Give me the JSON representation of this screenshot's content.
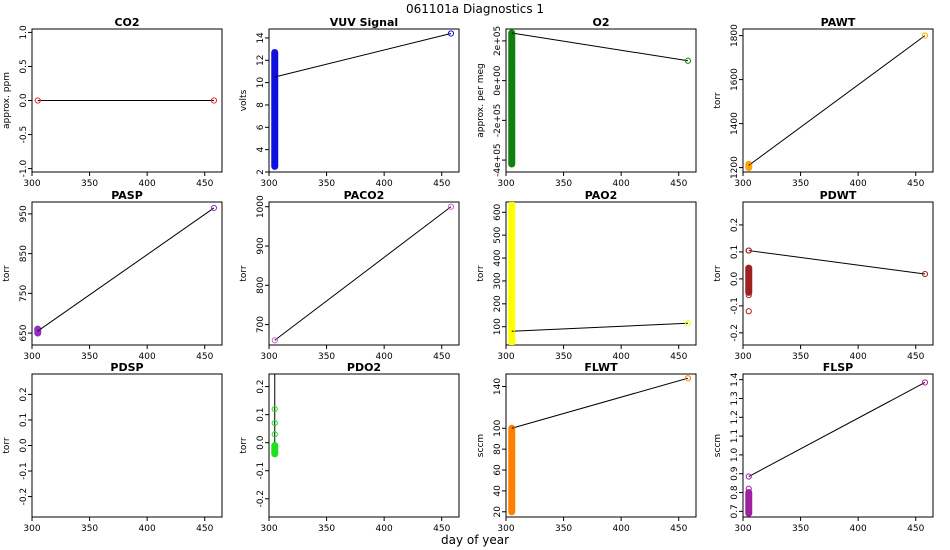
{
  "figure": {
    "title": "061101a    Diagnostics 1",
    "xlabel": "day of year"
  },
  "chart_data": [
    {
      "type": "scatter",
      "title": "CO2",
      "ylabel": "approx. ppm",
      "color": "#e03030",
      "xlim": [
        300,
        465
      ],
      "ylim": [
        -1.05,
        1.05
      ],
      "xticks": [
        300,
        350,
        400,
        450
      ],
      "yticks": [
        -1.0,
        -0.5,
        0.0,
        0.5,
        1.0
      ],
      "ytick_labels": [
        "-1.0",
        "-0.5",
        "0.0",
        "0.5",
        "1.0"
      ],
      "x": [
        305,
        458
      ],
      "y": [
        0.0,
        0.0
      ],
      "cluster": null
    },
    {
      "type": "scatter",
      "title": "VUV Signal",
      "ylabel": "volts",
      "color": "#1010e0",
      "xlim": [
        300,
        465
      ],
      "ylim": [
        2.0,
        14.8
      ],
      "xticks": [
        300,
        350,
        400,
        450
      ],
      "yticks": [
        2,
        4,
        6,
        8,
        10,
        12,
        14
      ],
      "ytick_labels": [
        "2",
        "4",
        "6",
        "8",
        "10",
        "12",
        "14"
      ],
      "x": [
        305,
        458
      ],
      "y": [
        10.5,
        14.4
      ],
      "cluster": {
        "x": 305,
        "ymin": 2.5,
        "ymax": 12.7
      }
    },
    {
      "type": "scatter",
      "title": "O2",
      "ylabel": "approx. per meg",
      "color": "#108010",
      "xlim": [
        300,
        465
      ],
      "ylim": [
        -460000,
        260000
      ],
      "xticks": [
        300,
        350,
        400,
        450
      ],
      "yticks": [
        -400000,
        -200000,
        0,
        200000
      ],
      "ytick_labels": [
        "-4e+05",
        "-2e+05",
        "0e+00",
        "2e+05"
      ],
      "x": [
        305,
        458
      ],
      "y": [
        240000,
        100000
      ],
      "cluster": {
        "x": 305,
        "ymin": -420000,
        "ymax": 240000,
        "points": [
          -420000,
          -200000,
          -110000,
          -40000,
          10000,
          40000,
          70000,
          120000,
          160000
        ]
      }
    },
    {
      "type": "scatter",
      "title": "PAWT",
      "ylabel": "torr",
      "color": "#ffa500",
      "xlim": [
        300,
        465
      ],
      "ylim": [
        1180,
        1830
      ],
      "xticks": [
        300,
        350,
        400,
        450
      ],
      "yticks": [
        1200,
        1400,
        1600,
        1800
      ],
      "ytick_labels": [
        "1200",
        "1400",
        "1600",
        "1800"
      ],
      "x": [
        305,
        458
      ],
      "y": [
        1210,
        1800
      ],
      "cluster": {
        "x": 305,
        "ymin": 1200,
        "ymax": 1215
      }
    },
    {
      "type": "scatter",
      "title": "PASP",
      "ylabel": "torr",
      "color": "#9030c0",
      "xlim": [
        300,
        465
      ],
      "ylim": [
        620,
        980
      ],
      "xticks": [
        300,
        350,
        400,
        450
      ],
      "yticks": [
        650,
        750,
        850,
        950
      ],
      "ytick_labels": [
        "650",
        "750",
        "850",
        "950"
      ],
      "x": [
        305,
        458
      ],
      "y": [
        655,
        965
      ],
      "cluster": {
        "x": 305,
        "ymin": 650,
        "ymax": 660
      }
    },
    {
      "type": "scatter",
      "title": "PACO2",
      "ylabel": "torr",
      "color": "#d060d0",
      "xlim": [
        300,
        465
      ],
      "ylim": [
        648,
        1012
      ],
      "xticks": [
        300,
        350,
        400,
        450
      ],
      "yticks": [
        700,
        800,
        900,
        1000
      ],
      "ytick_labels": [
        "700",
        "800",
        "900",
        "1000"
      ],
      "x": [
        305,
        458
      ],
      "y": [
        660,
        1000
      ],
      "cluster": null
    },
    {
      "type": "scatter",
      "title": "PAO2",
      "ylabel": "torr",
      "color": "#ffff00",
      "xlim": [
        300,
        465
      ],
      "ylim": [
        20,
        645
      ],
      "xticks": [
        300,
        350,
        400,
        450
      ],
      "yticks": [
        100,
        200,
        300,
        400,
        500,
        600
      ],
      "ytick_labels": [
        "100",
        "200",
        "300",
        "400",
        "500",
        "600"
      ],
      "x": [
        305,
        458
      ],
      "y": [
        80,
        115
      ],
      "cluster": {
        "x": 305,
        "ymin": 30,
        "ymax": 635
      }
    },
    {
      "type": "scatter",
      "title": "PDWT",
      "ylabel": "torr",
      "color": "#a02020",
      "xlim": [
        300,
        465
      ],
      "ylim": [
        -0.245,
        0.285
      ],
      "xticks": [
        300,
        350,
        400,
        450
      ],
      "yticks": [
        -0.2,
        -0.1,
        0.0,
        0.1,
        0.2
      ],
      "ytick_labels": [
        "-0.2",
        "-0.1",
        "0.0",
        "0.1",
        "0.2"
      ],
      "x": [
        305,
        458
      ],
      "y": [
        0.105,
        0.018
      ],
      "cluster": {
        "x": 305,
        "ymin": -0.05,
        "ymax": 0.04,
        "points": [
          -0.12,
          -0.06,
          0.105
        ]
      }
    },
    {
      "type": "scatter",
      "title": "PDSP",
      "ylabel": "torr",
      "color": "#ff69b4",
      "xlim": [
        300,
        465
      ],
      "ylim": [
        -0.28,
        0.28
      ],
      "xticks": [
        300,
        350,
        400,
        450
      ],
      "yticks": [
        -0.2,
        -0.1,
        0.0,
        0.1,
        0.2
      ],
      "ytick_labels": [
        "-0.2",
        "-0.1",
        "0.0",
        "0.1",
        "0.2"
      ],
      "x": [],
      "y": [],
      "cluster": null
    },
    {
      "type": "scatter",
      "title": "PDO2",
      "ylabel": "torr",
      "color": "#20e020",
      "xlim": [
        300,
        465
      ],
      "ylim": [
        -0.265,
        0.245
      ],
      "xticks": [
        300,
        350,
        400,
        450
      ],
      "yticks": [
        -0.2,
        -0.1,
        0.0,
        0.1,
        0.2
      ],
      "ytick_labels": [
        "-0.2",
        "-0.1",
        "0.0",
        "0.1",
        "0.2"
      ],
      "x": [],
      "y": [],
      "cluster": {
        "x": 305,
        "ymin": -0.04,
        "ymax": -0.01,
        "points": [
          0.03,
          0.07,
          0.12
        ],
        "line_top": 0.245
      }
    },
    {
      "type": "scatter",
      "title": "FLWT",
      "ylabel": "sccm",
      "color": "#ff8000",
      "xlim": [
        300,
        465
      ],
      "ylim": [
        15,
        152
      ],
      "xticks": [
        300,
        350,
        400,
        450
      ],
      "yticks": [
        20,
        40,
        60,
        80,
        100,
        140
      ],
      "ytick_labels": [
        "20",
        "40",
        "60",
        "80",
        "100",
        "140"
      ],
      "x": [
        305,
        458
      ],
      "y": [
        100,
        148
      ],
      "cluster": {
        "x": 305,
        "ymin": 20,
        "ymax": 100
      }
    },
    {
      "type": "scatter",
      "title": "FLSP",
      "ylabel": "sccm",
      "color": "#a020a0",
      "xlim": [
        300,
        465
      ],
      "ylim": [
        0.67,
        1.43
      ],
      "xticks": [
        300,
        350,
        400,
        450
      ],
      "yticks": [
        0.7,
        0.8,
        0.9,
        1.0,
        1.1,
        1.2,
        1.3,
        1.4
      ],
      "ytick_labels": [
        "0.7",
        "0.8",
        "0.9",
        "1.0",
        "1.1",
        "1.2",
        "1.3",
        "1.4"
      ],
      "x": [
        305,
        458
      ],
      "y": [
        0.885,
        1.385
      ],
      "cluster": {
        "x": 305,
        "ymin": 0.69,
        "ymax": 0.8,
        "points": [
          0.82
        ]
      }
    }
  ]
}
